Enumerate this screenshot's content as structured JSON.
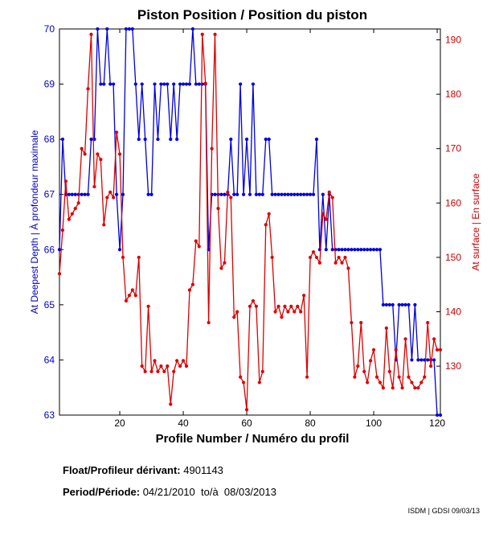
{
  "chart_data": {
    "type": "line",
    "title": "Piston Position / Position du piston",
    "xlabel": "Profile Number / Numéro du profil",
    "ylabel_left": "At Deepest Depth | À profondeur maximale",
    "ylabel_right": "At surface | En surface",
    "xlim": [
      1,
      121
    ],
    "x_ticks": [
      "20",
      "40",
      "60",
      "80",
      "100",
      "120"
    ],
    "ylim_left": [
      63,
      70
    ],
    "y_ticks_left": [
      "63",
      "64",
      "65",
      "66",
      "67",
      "68",
      "69",
      "70"
    ],
    "ylim_right": [
      121,
      192
    ],
    "y_ticks_right": [
      "130",
      "140",
      "150",
      "160",
      "170",
      "180",
      "190"
    ],
    "series": [
      {
        "name": "At Deepest Depth",
        "axis": "left",
        "color": "#0000dd",
        "x": [
          1,
          2,
          3,
          4,
          5,
          6,
          7,
          8,
          9,
          10,
          11,
          12,
          13,
          14,
          15,
          16,
          17,
          18,
          19,
          20,
          21,
          22,
          23,
          24,
          25,
          26,
          27,
          28,
          29,
          30,
          31,
          32,
          33,
          34,
          35,
          36,
          37,
          38,
          39,
          40,
          41,
          42,
          43,
          44,
          45,
          46,
          47,
          48,
          49,
          50,
          51,
          52,
          53,
          54,
          55,
          56,
          57,
          58,
          59,
          60,
          61,
          62,
          63,
          64,
          65,
          66,
          67,
          68,
          69,
          70,
          71,
          72,
          73,
          74,
          75,
          76,
          77,
          78,
          79,
          80,
          81,
          82,
          83,
          84,
          85,
          86,
          87,
          88,
          89,
          90,
          91,
          92,
          93,
          94,
          95,
          96,
          97,
          98,
          99,
          100,
          101,
          102,
          103,
          104,
          105,
          106,
          107,
          108,
          109,
          110,
          111,
          112,
          113,
          114,
          115,
          116,
          117,
          118,
          119,
          120,
          121
        ],
        "values": [
          66,
          68,
          67,
          67,
          67,
          67,
          67,
          67,
          67,
          67,
          68,
          68,
          70,
          69,
          69,
          70,
          69,
          69,
          67,
          66,
          67,
          70,
          70,
          70,
          69,
          68,
          69,
          68,
          67,
          67,
          69,
          68,
          69,
          69,
          69,
          68,
          69,
          68,
          69,
          69,
          69,
          69,
          70,
          69,
          69,
          69,
          69,
          66,
          67,
          67,
          67,
          67,
          67,
          67,
          68,
          67,
          67,
          69,
          67,
          68,
          67,
          69,
          67,
          67,
          67,
          68,
          68,
          67,
          67,
          67,
          67,
          67,
          67,
          67,
          67,
          67,
          67,
          67,
          67,
          67,
          67,
          68,
          66,
          67,
          66,
          67,
          66,
          66,
          66,
          66,
          66,
          66,
          66,
          66,
          66,
          66,
          66,
          66,
          66,
          66,
          66,
          66,
          65,
          65,
          65,
          65,
          64,
          65,
          65,
          65,
          65,
          64,
          65,
          64,
          64,
          64,
          64,
          64,
          64,
          63,
          63
        ]
      },
      {
        "name": "At surface",
        "axis": "right",
        "color": "#dd0000",
        "x": [
          1,
          2,
          3,
          4,
          5,
          6,
          7,
          8,
          9,
          10,
          11,
          12,
          13,
          14,
          15,
          16,
          17,
          18,
          19,
          20,
          21,
          22,
          23,
          24,
          25,
          26,
          27,
          28,
          29,
          30,
          31,
          32,
          33,
          34,
          35,
          36,
          37,
          38,
          39,
          40,
          41,
          42,
          43,
          44,
          45,
          46,
          47,
          48,
          49,
          50,
          51,
          52,
          53,
          54,
          55,
          56,
          57,
          58,
          59,
          60,
          61,
          62,
          63,
          64,
          65,
          66,
          67,
          68,
          69,
          70,
          71,
          72,
          73,
          74,
          75,
          76,
          77,
          78,
          79,
          80,
          81,
          82,
          83,
          84,
          85,
          86,
          87,
          88,
          89,
          90,
          91,
          92,
          93,
          94,
          95,
          96,
          97,
          98,
          99,
          100,
          101,
          102,
          103,
          104,
          105,
          106,
          107,
          108,
          109,
          110,
          111,
          112,
          113,
          114,
          115,
          116,
          117,
          118,
          119,
          120,
          121
        ],
        "values": [
          147,
          155,
          164,
          157,
          158,
          159,
          160,
          170,
          169,
          181,
          191,
          163,
          169,
          168,
          156,
          161,
          162,
          161,
          173,
          169,
          150,
          142,
          143,
          144,
          143,
          150,
          130,
          129,
          141,
          129,
          131,
          129,
          130,
          129,
          130,
          123,
          129,
          131,
          130,
          131,
          130,
          144,
          145,
          153,
          152,
          191,
          182,
          138,
          170,
          191,
          159,
          148,
          149,
          162,
          161,
          139,
          140,
          128,
          127,
          122,
          141,
          142,
          141,
          127,
          129,
          156,
          158,
          150,
          140,
          141,
          139,
          141,
          140,
          141,
          140,
          141,
          140,
          143,
          128,
          150,
          151,
          150,
          149,
          158,
          157,
          162,
          161,
          149,
          150,
          149,
          150,
          148,
          138,
          128,
          130,
          138,
          129,
          127,
          131,
          133,
          128,
          127,
          126,
          137,
          129,
          126,
          133,
          128,
          126,
          135,
          128,
          127,
          126,
          126,
          127,
          128,
          138,
          130,
          135,
          133,
          133
        ]
      }
    ]
  },
  "info": {
    "float_label": "Float/Profileur dérivant:",
    "float_value": "4901143",
    "period_label": "Period/Période:",
    "period_value": "04/21/2010  to/à  08/03/2013"
  },
  "credit": "ISDM | GDSI 09/03/13"
}
